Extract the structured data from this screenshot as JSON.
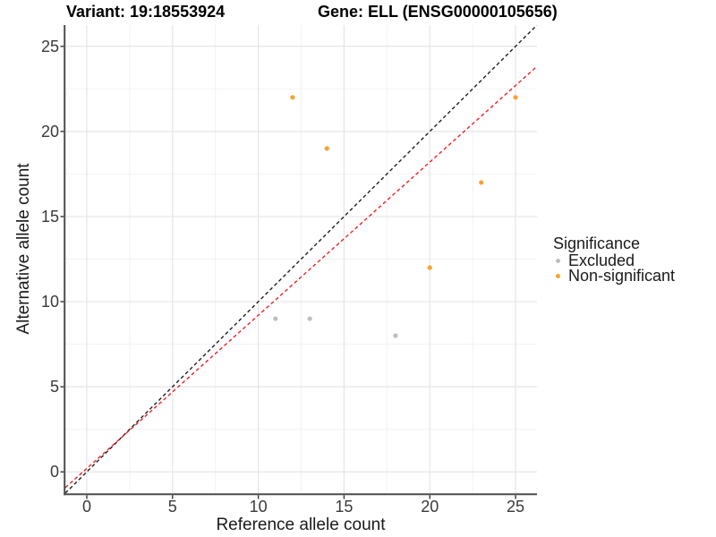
{
  "header": {
    "variant_title": "Variant: 19:18553924",
    "gene_title": "Gene: ELL (ENSG00000105656)"
  },
  "chart_data": {
    "type": "scatter",
    "xlabel": "Reference allele count",
    "ylabel": "Alternative allele count",
    "xlim": [
      -1.25,
      26.25
    ],
    "ylim": [
      -1.25,
      26.25
    ],
    "x_ticks": [
      0,
      5,
      10,
      15,
      20,
      25
    ],
    "y_ticks": [
      0,
      5,
      10,
      15,
      20,
      25
    ],
    "x_minor_ticks": [
      2.5,
      7.5,
      12.5,
      17.5,
      22.5
    ],
    "y_minor_ticks": [
      2.5,
      7.5,
      12.5,
      17.5,
      22.5
    ],
    "grid": "major+minor",
    "legend_position": "right",
    "series": [
      {
        "name": "Excluded",
        "color": "#BEBEBE",
        "points": [
          [
            11,
            9
          ],
          [
            13,
            9
          ],
          [
            18,
            8
          ]
        ]
      },
      {
        "name": "Non-significant",
        "color": "#F9A22E",
        "points": [
          [
            12,
            22
          ],
          [
            14,
            19
          ],
          [
            20,
            12
          ],
          [
            23,
            17
          ],
          [
            25,
            22
          ]
        ]
      }
    ],
    "reference_lines": [
      {
        "name": "identity-line",
        "slope": 1,
        "intercept": 0,
        "color": "#1F1F1F",
        "style": "dashed"
      },
      {
        "name": "fitted-ratio-line",
        "slope": 0.9,
        "intercept": 0.2,
        "color": "#EF2020",
        "style": "dashed"
      }
    ],
    "legend": {
      "title": "Significance",
      "entries": [
        {
          "label": "Excluded",
          "color": "#BEBEBE"
        },
        {
          "label": "Non-significant",
          "color": "#F9A22E"
        }
      ]
    },
    "colors": {
      "grid_major": "#E5E5E5",
      "grid_minor": "#F2F2F2",
      "axis_line": "#4D4D4D",
      "tick_mark": "#333333"
    }
  }
}
